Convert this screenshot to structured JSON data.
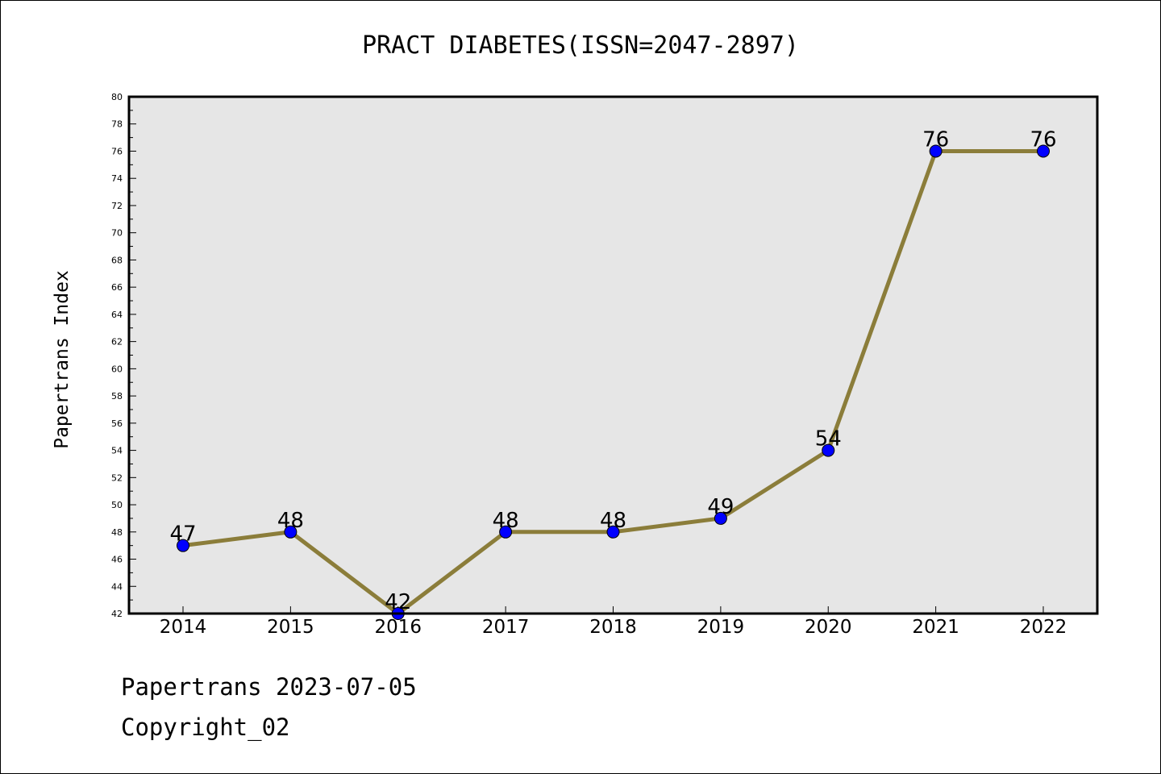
{
  "chart_data": {
    "type": "line",
    "title": "PRACT DIABETES(ISSN=2047-2897)",
    "xlabel": "",
    "ylabel": "Papertrans Index",
    "categories": [
      "2014",
      "2015",
      "2016",
      "2017",
      "2018",
      "2019",
      "2020",
      "2021",
      "2022"
    ],
    "series": [
      {
        "values": [
          47,
          48,
          42,
          48,
          48,
          49,
          54,
          76,
          76
        ]
      }
    ],
    "data_labels": [
      "47",
      "48",
      "42",
      "48",
      "48",
      "49",
      "54",
      "76",
      "76"
    ],
    "ylim": [
      42,
      80
    ],
    "yticks": [
      "42",
      "44",
      "46",
      "48",
      "50",
      "52",
      "54",
      "56",
      "58",
      "60",
      "62",
      "64",
      "66",
      "68",
      "70",
      "72",
      "74",
      "76",
      "78",
      "80"
    ],
    "grid": false,
    "legend": "none",
    "colors": {
      "line": "#8b7d3a",
      "marker": "#0000ff",
      "plot_background": "#e6e6e6"
    }
  },
  "footer": {
    "date_text": "Papertrans 2023-07-05",
    "copyright_text": "Copyright_02"
  }
}
